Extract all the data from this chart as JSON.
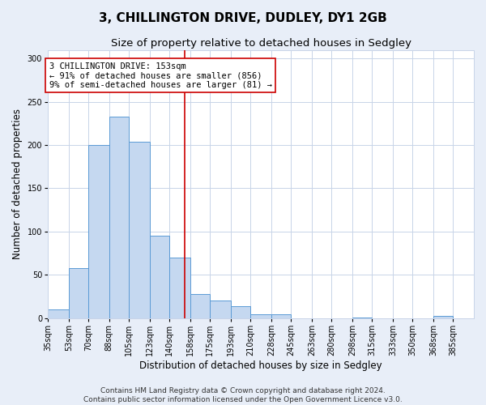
{
  "title": "3, CHILLINGTON DRIVE, DUDLEY, DY1 2GB",
  "subtitle": "Size of property relative to detached houses in Sedgley",
  "xlabel": "Distribution of detached houses by size in Sedgley",
  "ylabel": "Number of detached properties",
  "bar_labels": [
    "35sqm",
    "53sqm",
    "70sqm",
    "88sqm",
    "105sqm",
    "123sqm",
    "140sqm",
    "158sqm",
    "175sqm",
    "193sqm",
    "210sqm",
    "228sqm",
    "245sqm",
    "263sqm",
    "280sqm",
    "298sqm",
    "315sqm",
    "333sqm",
    "350sqm",
    "368sqm",
    "385sqm"
  ],
  "bar_heights": [
    10,
    58,
    200,
    233,
    204,
    95,
    70,
    28,
    20,
    14,
    4,
    4,
    0,
    0,
    0,
    1,
    0,
    0,
    0,
    2,
    0
  ],
  "bar_edges": [
    35,
    53,
    70,
    88,
    105,
    123,
    140,
    158,
    175,
    193,
    210,
    228,
    245,
    263,
    280,
    298,
    315,
    333,
    350,
    368,
    385
  ],
  "bar_color": "#c5d8f0",
  "bar_edge_color": "#5b9bd5",
  "property_line_x": 153,
  "property_line_color": "#cc0000",
  "annotation_title": "3 CHILLINGTON DRIVE: 153sqm",
  "annotation_line1": "← 91% of detached houses are smaller (856)",
  "annotation_line2": "9% of semi-detached houses are larger (81) →",
  "annotation_box_edge": "#cc0000",
  "annotation_box_bg": "#ffffff",
  "ylim": [
    0,
    310
  ],
  "yticks": [
    0,
    50,
    100,
    150,
    200,
    250,
    300
  ],
  "footer1": "Contains HM Land Registry data © Crown copyright and database right 2024.",
  "footer2": "Contains public sector information licensed under the Open Government Licence v3.0.",
  "bg_color": "#e8eef8",
  "plot_bg_color": "#ffffff",
  "grid_color": "#c8d4e8",
  "title_fontsize": 11,
  "subtitle_fontsize": 9.5,
  "tick_fontsize": 7,
  "label_fontsize": 8.5,
  "footer_fontsize": 6.5,
  "annotation_fontsize": 7.5
}
